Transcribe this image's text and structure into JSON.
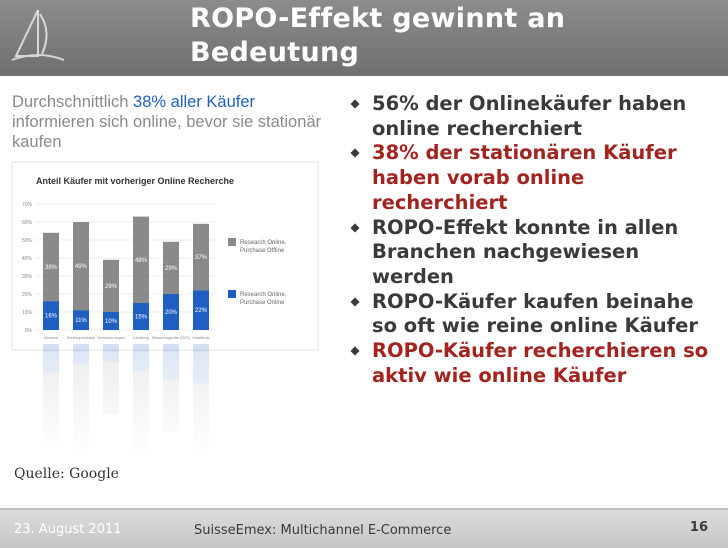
{
  "slide": {
    "title": "ROPO-Effekt gewinnt an Bedeutung",
    "source": "Quelle: Google"
  },
  "chart": {
    "headline_prefix": "Durchschnittlich ",
    "headline_highlight": "38% aller Käufer",
    "headline_suffix": " informieren sich online, bevor sie stationär kaufen"
  },
  "chart_data": {
    "type": "bar",
    "title": "Anteil Käufer mit vorheriger Online Recherche",
    "ylim": [
      0,
      70
    ],
    "yticks": [
      "0%",
      "10%",
      "20%",
      "30%",
      "40%",
      "50%",
      "60%",
      "70%"
    ],
    "categories": [
      "Gesamt",
      "Elektroprodukte",
      "Versicherungen",
      "Kleidung",
      "Bereichsgeräte (DIG)",
      "Mobilfunk"
    ],
    "series": [
      {
        "name": "Research Online, Purchase Online",
        "color": "#1f5fc2",
        "values": [
          16,
          11,
          10,
          15,
          20,
          22
        ]
      },
      {
        "name": "Research Online, Purchase Offline",
        "color": "#8a8a8a",
        "values": [
          38,
          49,
          29,
          48,
          29,
          37
        ]
      }
    ],
    "legend": "right",
    "grid": true
  },
  "bullets": [
    {
      "text": "56% der Onlinekäufer haben online recherchiert",
      "color": "#3a3a3a"
    },
    {
      "text": "38% der stationären Käufer haben vorab online recherchiert",
      "color": "#a3231f"
    },
    {
      "text": "ROPO-Effekt konnte in allen Branchen nachgewiesen werden",
      "color": "#3a3a3a"
    },
    {
      "text": "ROPO-Käufer kaufen beinahe so oft wie reine online Käufer",
      "color": "#3a3a3a"
    },
    {
      "text": "ROPO-Käufer recherchieren so aktiv wie online Käufer",
      "color": "#a3231f"
    }
  ],
  "footer": {
    "date": "23. August 2011",
    "center": "SuisseEmex: Multichannel E-Commerce",
    "page": "16"
  }
}
